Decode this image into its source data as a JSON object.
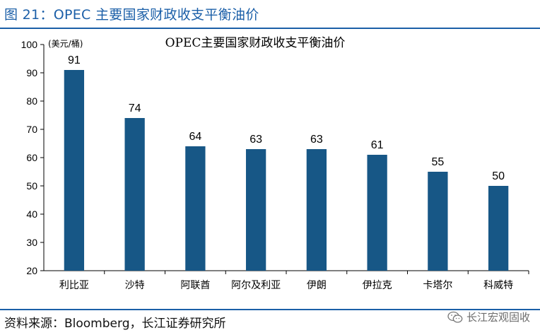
{
  "figure_title": "图 21：OPEC 主要国家财政收支平衡油价",
  "source": "资料来源：Bloomberg，长江证券研究所",
  "watermark": {
    "text": "长江宏观固收",
    "icon": "wechat-icon"
  },
  "colors": {
    "accent": "#1b5fa8",
    "bar": "#175786"
  },
  "chart_data": {
    "type": "bar",
    "title": "OPEC主要国家财政收支平衡油价",
    "unit_label": "(美元/桶)",
    "xlabel": "",
    "ylabel": "",
    "categories": [
      "利比亚",
      "沙特",
      "阿联酋",
      "阿尔及利亚",
      "伊朗",
      "伊拉克",
      "卡塔尔",
      "科威特"
    ],
    "values": [
      91,
      74,
      64,
      63,
      63,
      61,
      55,
      50
    ],
    "data_labels": [
      "91",
      "74",
      "64",
      "63",
      "63",
      "61",
      "55",
      "50"
    ],
    "ylim": [
      20,
      100
    ],
    "yticks": [
      "20",
      "30",
      "40",
      "50",
      "60",
      "70",
      "80",
      "90",
      "100"
    ],
    "grid": false,
    "legend": "none"
  }
}
